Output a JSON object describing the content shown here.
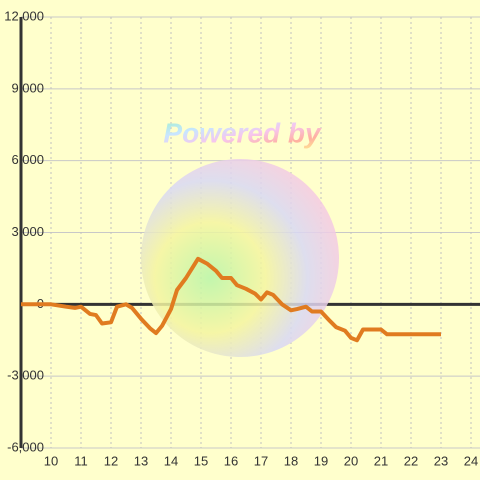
{
  "chart_data": {
    "type": "line",
    "watermark": "Powered by",
    "x": [
      9,
      9.5,
      10,
      10.5,
      10.8,
      11,
      11.3,
      11.5,
      11.7,
      12,
      12.2,
      12.5,
      12.7,
      13,
      13.3,
      13.5,
      13.7,
      14,
      14.2,
      14.5,
      14.7,
      14.9,
      15.2,
      15.5,
      15.7,
      16,
      16.2,
      16.5,
      16.8,
      17,
      17.2,
      17.4,
      17.7,
      18,
      18.2,
      18.5,
      18.7,
      19,
      19.3,
      19.5,
      19.8,
      20,
      20.2,
      20.4,
      20.7,
      21,
      21.2,
      21.5,
      22,
      22.5,
      23
    ],
    "series": [
      {
        "color": "#e07b20",
        "values": [
          0,
          0,
          0,
          -100,
          -150,
          -100,
          -400,
          -450,
          -800,
          -750,
          -100,
          0,
          -150,
          -600,
          -1000,
          -1200,
          -900,
          -200,
          600,
          1100,
          1500,
          1900,
          1700,
          1400,
          1100,
          1100,
          800,
          650,
          450,
          200,
          500,
          400,
          0,
          -250,
          -200,
          -100,
          -300,
          -300,
          -700,
          -950,
          -1100,
          -1400,
          -1500,
          -1050,
          -1050,
          -1050,
          -1250,
          -1250,
          -1250,
          -1250,
          -1250
        ]
      }
    ],
    "xlim": [
      9,
      24.3
    ],
    "xticks": [
      10,
      11,
      12,
      13,
      14,
      15,
      16,
      17,
      18,
      19,
      20,
      21,
      22,
      23,
      24
    ],
    "ylim": [
      -6000,
      12000
    ],
    "yticks": [
      {
        "value": -6000,
        "label": "-6,000"
      },
      {
        "value": -3000,
        "label": "-3,000"
      },
      0,
      {
        "value": 3000,
        "label": "3,000"
      },
      {
        "value": 6000,
        "label": "6,000"
      },
      {
        "value": 9000,
        "label": "9,000"
      },
      {
        "value": 12000,
        "label": "12,000"
      }
    ],
    "grid": true
  }
}
